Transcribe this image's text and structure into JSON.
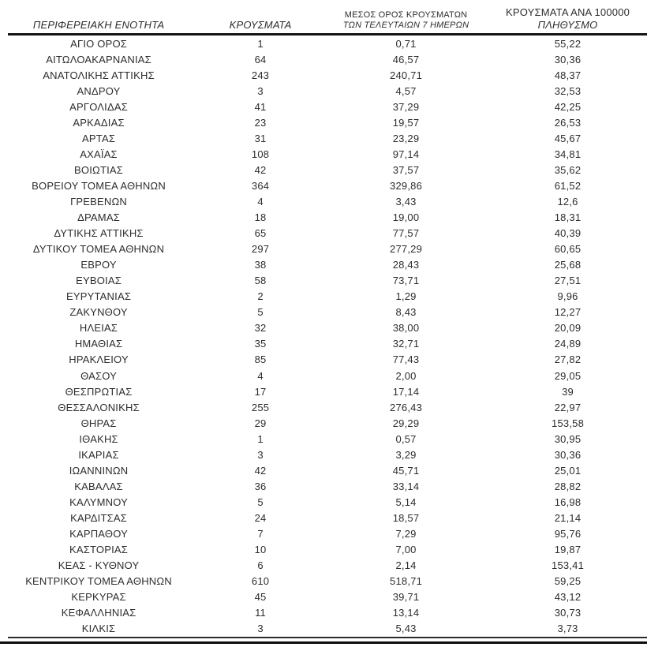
{
  "colors": {
    "background": "#ffffff",
    "text": "#2d2d2d",
    "rule": "#141414"
  },
  "table": {
    "columns": [
      {
        "id": "region",
        "line1": "ΠΕΡΙΦΕΡΕΙΑΚΗ ΕΝΟΤΗΤΑ",
        "line2": ""
      },
      {
        "id": "cases",
        "line1": "ΚΡΟΥΣΜΑΤΑ",
        "line2": ""
      },
      {
        "id": "avg7",
        "line1": "ΜΕΣΟΣ ΟΡΟΣ ΚΡΟΥΣΜΑΤΩΝ",
        "line2": "ΤΩΝ ΤΕΛΕΥΤΑΙΩΝ 7 ΗΜΕΡΩΝ"
      },
      {
        "id": "per100k",
        "line1": "ΚΡΟΥΣΜΑΤΑ ΑΝΑ 100000",
        "line2": "ΠΛΗΘΥΣΜΟ"
      }
    ],
    "rows": [
      [
        "ΑΓΙΟ ΟΡΟΣ",
        "1",
        "0,71",
        "55,22"
      ],
      [
        "ΑΙΤΩΛΟΑΚΑΡΝΑΝΙΑΣ",
        "64",
        "46,57",
        "30,36"
      ],
      [
        "ΑΝΑΤΟΛΙΚΗΣ ΑΤΤΙΚΗΣ",
        "243",
        "240,71",
        "48,37"
      ],
      [
        "ΑΝΔΡΟΥ",
        "3",
        "4,57",
        "32,53"
      ],
      [
        "ΑΡΓΟΛΙΔΑΣ",
        "41",
        "37,29",
        "42,25"
      ],
      [
        "ΑΡΚΑΔΙΑΣ",
        "23",
        "19,57",
        "26,53"
      ],
      [
        "ΑΡΤΑΣ",
        "31",
        "23,29",
        "45,67"
      ],
      [
        "ΑΧΑΪΑΣ",
        "108",
        "97,14",
        "34,81"
      ],
      [
        "ΒΟΙΩΤΙΑΣ",
        "42",
        "37,57",
        "35,62"
      ],
      [
        "ΒΟΡΕΙΟΥ ΤΟΜΕΑ ΑΘΗΝΩΝ",
        "364",
        "329,86",
        "61,52"
      ],
      [
        "ΓΡΕΒΕΝΩΝ",
        "4",
        "3,43",
        "12,6"
      ],
      [
        "ΔΡΑΜΑΣ",
        "18",
        "19,00",
        "18,31"
      ],
      [
        "ΔΥΤΙΚΗΣ ΑΤΤΙΚΗΣ",
        "65",
        "77,57",
        "40,39"
      ],
      [
        "ΔΥΤΙΚΟΥ ΤΟΜΕΑ ΑΘΗΝΩΝ",
        "297",
        "277,29",
        "60,65"
      ],
      [
        "ΕΒΡΟΥ",
        "38",
        "28,43",
        "25,68"
      ],
      [
        "ΕΥΒΟΙΑΣ",
        "58",
        "73,71",
        "27,51"
      ],
      [
        "ΕΥΡΥΤΑΝΙΑΣ",
        "2",
        "1,29",
        "9,96"
      ],
      [
        "ΖΑΚΥΝΘΟΥ",
        "5",
        "8,43",
        "12,27"
      ],
      [
        "ΗΛΕΙΑΣ",
        "32",
        "38,00",
        "20,09"
      ],
      [
        "ΗΜΑΘΙΑΣ",
        "35",
        "32,71",
        "24,89"
      ],
      [
        "ΗΡΑΚΛΕΙΟΥ",
        "85",
        "77,43",
        "27,82"
      ],
      [
        "ΘΑΣΟΥ",
        "4",
        "2,00",
        "29,05"
      ],
      [
        "ΘΕΣΠΡΩΤΙΑΣ",
        "17",
        "17,14",
        "39"
      ],
      [
        "ΘΕΣΣΑΛΟΝΙΚΗΣ",
        "255",
        "276,43",
        "22,97"
      ],
      [
        "ΘΗΡΑΣ",
        "29",
        "29,29",
        "153,58"
      ],
      [
        "ΙΘΑΚΗΣ",
        "1",
        "0,57",
        "30,95"
      ],
      [
        "ΙΚΑΡΙΑΣ",
        "3",
        "3,29",
        "30,36"
      ],
      [
        "ΙΩΑΝΝΙΝΩΝ",
        "42",
        "45,71",
        "25,01"
      ],
      [
        "ΚΑΒΑΛΑΣ",
        "36",
        "33,14",
        "28,82"
      ],
      [
        "ΚΑΛΥΜΝΟΥ",
        "5",
        "5,14",
        "16,98"
      ],
      [
        "ΚΑΡΔΙΤΣΑΣ",
        "24",
        "18,57",
        "21,14"
      ],
      [
        "ΚΑΡΠΑΘΟΥ",
        "7",
        "7,29",
        "95,76"
      ],
      [
        "ΚΑΣΤΟΡΙΑΣ",
        "10",
        "7,00",
        "19,87"
      ],
      [
        "ΚΕΑΣ - ΚΥΘΝΟΥ",
        "6",
        "2,14",
        "153,41"
      ],
      [
        "ΚΕΝΤΡΙΚΟΥ ΤΟΜΕΑ ΑΘΗΝΩΝ",
        "610",
        "518,71",
        "59,25"
      ],
      [
        "ΚΕΡΚΥΡΑΣ",
        "45",
        "39,71",
        "43,12"
      ],
      [
        "ΚΕΦΑΛΛΗΝΙΑΣ",
        "11",
        "13,14",
        "30,73"
      ],
      [
        "ΚΙΛΚΙΣ",
        "3",
        "5,43",
        "3,73"
      ]
    ]
  }
}
